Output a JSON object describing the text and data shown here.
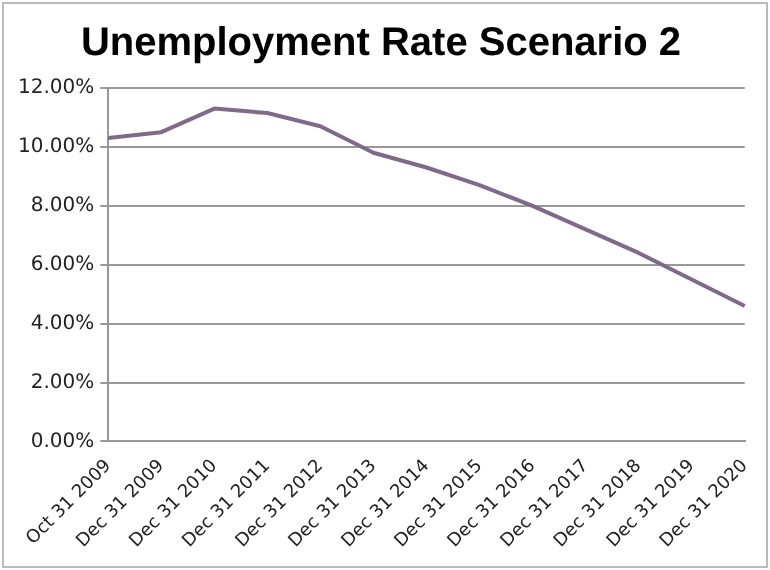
{
  "chart_data": {
    "type": "line",
    "title": "Unemployment Rate Scenario 2",
    "categories": [
      "Oct 31 2009",
      "Dec 31 2009",
      "Dec 31 2010",
      "Dec 31 2011",
      "Dec 31 2012",
      "Dec 31 2013",
      "Dec 31 2014",
      "Dec 31 2015",
      "Dec 31 2016",
      "Dec 31 2017",
      "Dec 31 2018",
      "Dec 31 2019",
      "Dec 31 2020"
    ],
    "series": [
      {
        "color": "#7f6a8a",
        "values": [
          10.3,
          10.5,
          11.3,
          11.15,
          10.7,
          9.8,
          9.3,
          8.7,
          8.0,
          7.2,
          6.4,
          5.5,
          4.6
        ]
      }
    ],
    "ylim": [
      0,
      12
    ],
    "yticks": [
      {
        "value": 0,
        "label": "0.00%"
      },
      {
        "value": 2,
        "label": "2.00%"
      },
      {
        "value": 4,
        "label": "4.00%"
      },
      {
        "value": 6,
        "label": "6.00%"
      },
      {
        "value": 8,
        "label": "8.00%"
      },
      {
        "value": 10,
        "label": "10.00%"
      },
      {
        "value": 12,
        "label": "12.00%"
      }
    ],
    "grid": "y",
    "legend": false,
    "marker": "none",
    "line_style": "solid"
  }
}
